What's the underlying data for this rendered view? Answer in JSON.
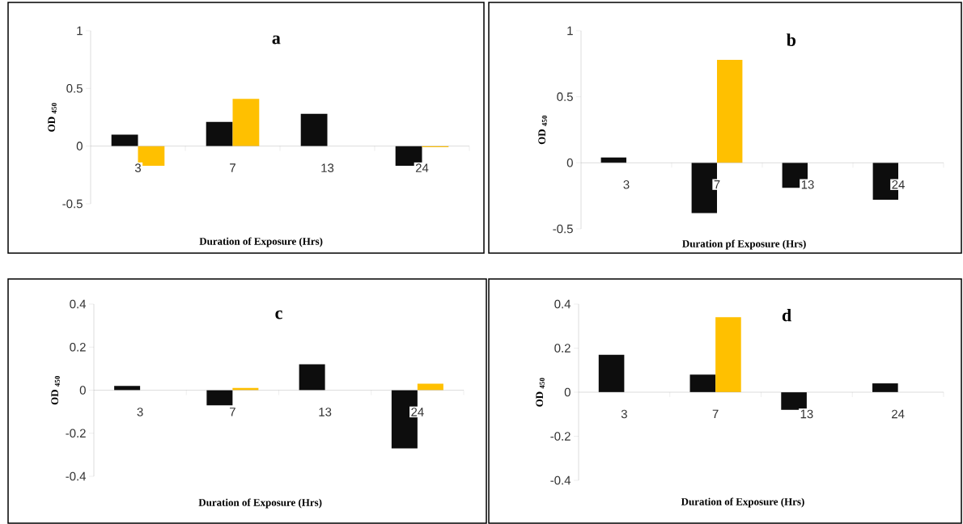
{
  "chart_data": [
    {
      "type": "bar",
      "title": "a",
      "xlabel": "Duration of Exposure (Hrs)",
      "ylabel": "OD $_{450}$",
      "categories": [
        "3",
        "7",
        "13",
        "24"
      ],
      "series": [
        {
          "color": "#0d0d0d",
          "values": [
            0.1,
            0.21,
            0.28,
            -0.17
          ]
        },
        {
          "color": "#ffc000",
          "values": [
            -0.17,
            0.41,
            0,
            -0.01
          ]
        }
      ],
      "ylim": [
        -0.5,
        1
      ],
      "yticks": [
        -0.5,
        0,
        0.5,
        1
      ]
    },
    {
      "type": "bar",
      "title": "b",
      "xlabel": "Duration pf Exposure (Hrs)",
      "ylabel": "OD $_{450}$",
      "categories": [
        "3",
        "7",
        "13",
        "24"
      ],
      "series": [
        {
          "color": "#0d0d0d",
          "values": [
            0.04,
            -0.38,
            -0.19,
            -0.28
          ]
        },
        {
          "color": "#ffc000",
          "values": [
            0,
            0.78,
            0,
            0
          ]
        }
      ],
      "ylim": [
        -0.5,
        1
      ],
      "yticks": [
        -0.5,
        0,
        0.5,
        1
      ]
    },
    {
      "type": "bar",
      "title": "c",
      "xlabel": "Duration of Exposure (Hrs)",
      "ylabel": "OD $_{450}$",
      "categories": [
        "3",
        "7",
        "13",
        "24"
      ],
      "series": [
        {
          "color": "#0d0d0d",
          "values": [
            0.02,
            -0.07,
            0.12,
            -0.27
          ]
        },
        {
          "color": "#ffc000",
          "values": [
            0,
            0.01,
            0,
            0.03
          ]
        }
      ],
      "ylim": [
        -0.4,
        0.4
      ],
      "yticks": [
        -0.4,
        -0.2,
        0,
        0.2,
        0.4
      ]
    },
    {
      "type": "bar",
      "title": "d",
      "xlabel": "Duration of Exposure (Hrs)",
      "ylabel": "OD $_{450}$",
      "categories": [
        "3",
        "7",
        "13",
        "24"
      ],
      "series": [
        {
          "color": "#0d0d0d",
          "values": [
            0.17,
            0.08,
            -0.08,
            0.04
          ]
        },
        {
          "color": "#ffc000",
          "values": [
            0,
            0.34,
            0,
            0
          ]
        }
      ],
      "ylim": [
        -0.4,
        0.4
      ],
      "yticks": [
        -0.4,
        -0.2,
        0,
        0.2,
        0.4
      ]
    }
  ]
}
